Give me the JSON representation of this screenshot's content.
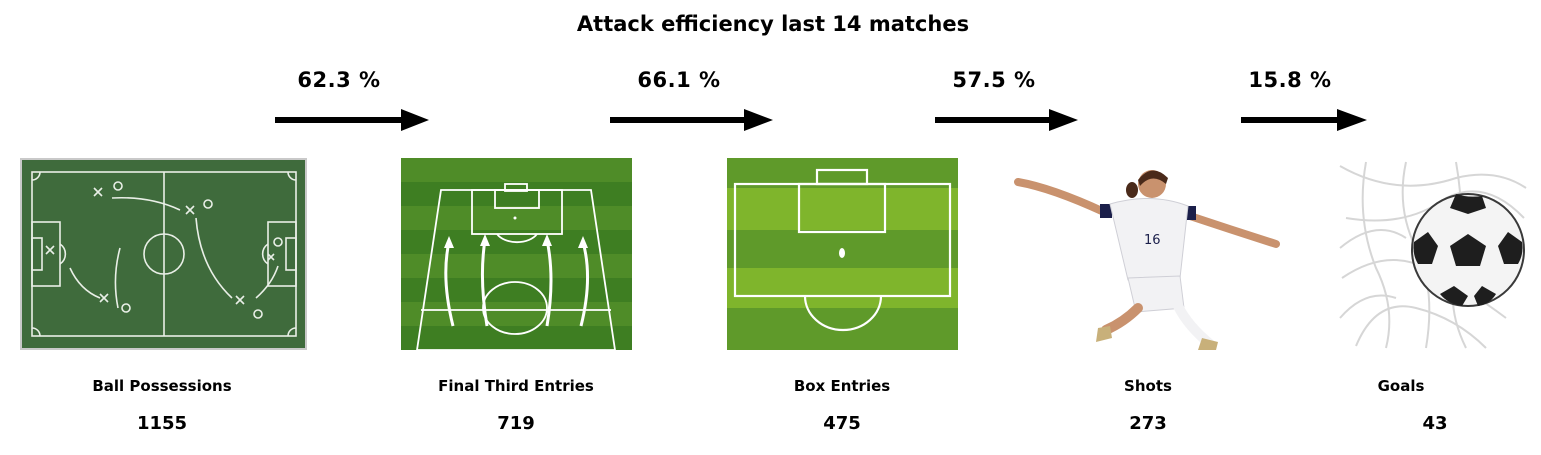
{
  "title": "Attack efficiency last 14 matches",
  "stages": [
    {
      "label": "Ball Possessions",
      "value": "1155",
      "image": "tactics-chalkboard-image"
    },
    {
      "label": "Final Third Entries",
      "value": "719",
      "image": "final-third-pitch-image"
    },
    {
      "label": "Box Entries",
      "value": "475",
      "image": "penalty-box-pitch-image"
    },
    {
      "label": "Shots",
      "value": "273",
      "image": "player-shooting-image"
    },
    {
      "label": "Goals",
      "value": "43",
      "image": "ball-in-net-image"
    }
  ],
  "conversions": [
    {
      "rate": "62.3 %"
    },
    {
      "rate": "66.1 %"
    },
    {
      "rate": "57.5 %"
    },
    {
      "rate": "15.8 %"
    }
  ],
  "colors": {
    "chalkboard": "#3f6b3c",
    "pitch_dark": "#3e7e22",
    "pitch_light": "#5f9a2a",
    "box_light": "#7fb52c",
    "box_dark": "#6ea521",
    "arrow": "#000000"
  }
}
